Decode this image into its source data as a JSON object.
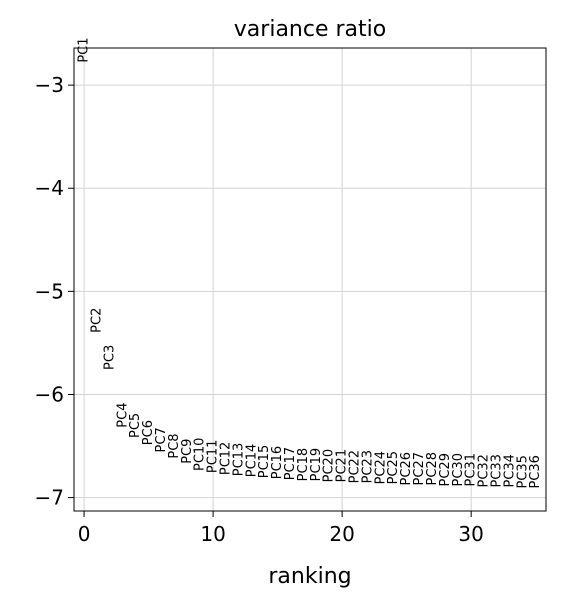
{
  "chart_data": {
    "type": "scatter",
    "title": "variance ratio",
    "x_label": "ranking",
    "x": [
      0,
      1,
      2,
      3,
      4,
      5,
      6,
      7,
      8,
      9,
      10,
      11,
      12,
      13,
      14,
      15,
      16,
      17,
      18,
      19,
      20,
      21,
      22,
      23,
      24,
      25,
      26,
      27,
      28,
      29,
      30,
      31,
      32,
      33,
      34,
      35
    ],
    "labels": [
      "PC1",
      "PC2",
      "PC3",
      "PC4",
      "PC5",
      "PC6",
      "PC7",
      "PC8",
      "PC9",
      "PC10",
      "PC11",
      "PC12",
      "PC13",
      "PC14",
      "PC15",
      "PC16",
      "PC17",
      "PC18",
      "PC19",
      "PC20",
      "PC21",
      "PC22",
      "PC23",
      "PC24",
      "PC25",
      "PC26",
      "PC27",
      "PC28",
      "PC29",
      "PC30",
      "PC31",
      "PC32",
      "PC33",
      "PC34",
      "PC35",
      "PC36"
    ],
    "values": [
      -2.66,
      -5.28,
      -5.64,
      -6.2,
      -6.3,
      -6.37,
      -6.44,
      -6.5,
      -6.55,
      -6.58,
      -6.6,
      -6.62,
      -6.63,
      -6.64,
      -6.65,
      -6.66,
      -6.67,
      -6.68,
      -6.68,
      -6.69,
      -6.69,
      -6.7,
      -6.7,
      -6.71,
      -6.71,
      -6.72,
      -6.72,
      -6.72,
      -6.73,
      -6.73,
      -6.73,
      -6.74,
      -6.74,
      -6.74,
      -6.75,
      -6.75
    ],
    "xlim": [
      -0.78,
      35.8
    ],
    "ylim": [
      -7.13,
      -2.64
    ],
    "xticks": [
      0,
      10,
      20,
      30
    ],
    "yticks": [
      {
        "value": -7,
        "label": "−7"
      },
      {
        "value": -6,
        "label": "−6"
      },
      {
        "value": -5,
        "label": "−5"
      },
      {
        "value": -4,
        "label": "−4"
      },
      {
        "value": -3,
        "label": "−3"
      }
    ],
    "grid": true
  }
}
